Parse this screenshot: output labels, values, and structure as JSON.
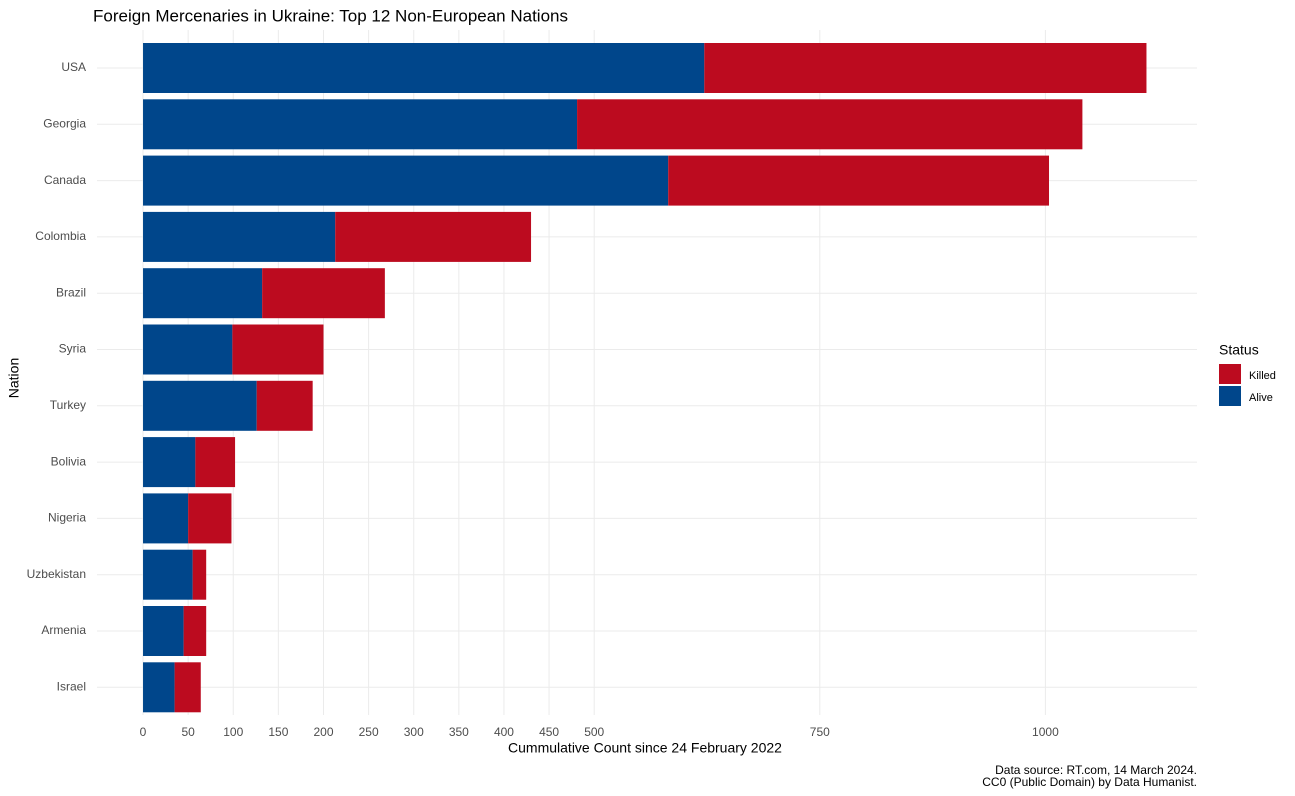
{
  "chart_data": {
    "type": "stacked_barh",
    "title": "Foreign Mercenaries in Ukraine: Top 12 Non-European Nations",
    "x_label": "Cummulative Count since 24 February 2022",
    "y_label": "Nation",
    "caption": [
      "Data source: RT.com, 14 March 2024.",
      "CC0 (Public Domain) by Data Humanist."
    ],
    "legend_title": "Status",
    "categories": [
      "USA",
      "Georgia",
      "Canada",
      "Colombia",
      "Brazil",
      "Syria",
      "Turkey",
      "Bolivia",
      "Nigeria",
      "Uzbekistan",
      "Armenia",
      "Israel"
    ],
    "series": [
      {
        "name": "Killed",
        "color": "#bc0b1f",
        "values": [
          490,
          560,
          422,
          217,
          136,
          101,
          62,
          44,
          48,
          15,
          25,
          29
        ]
      },
      {
        "name": "Alive",
        "color": "#00468b",
        "values": [
          622,
          481,
          582,
          213,
          132,
          99,
          126,
          58,
          50,
          55,
          45,
          35
        ]
      }
    ],
    "xlim": [
      -51,
      1168
    ],
    "xticks": [
      0,
      50,
      100,
      150,
      200,
      250,
      300,
      350,
      400,
      450,
      500,
      750,
      1000
    ],
    "grid": true,
    "legend_position": "right"
  }
}
